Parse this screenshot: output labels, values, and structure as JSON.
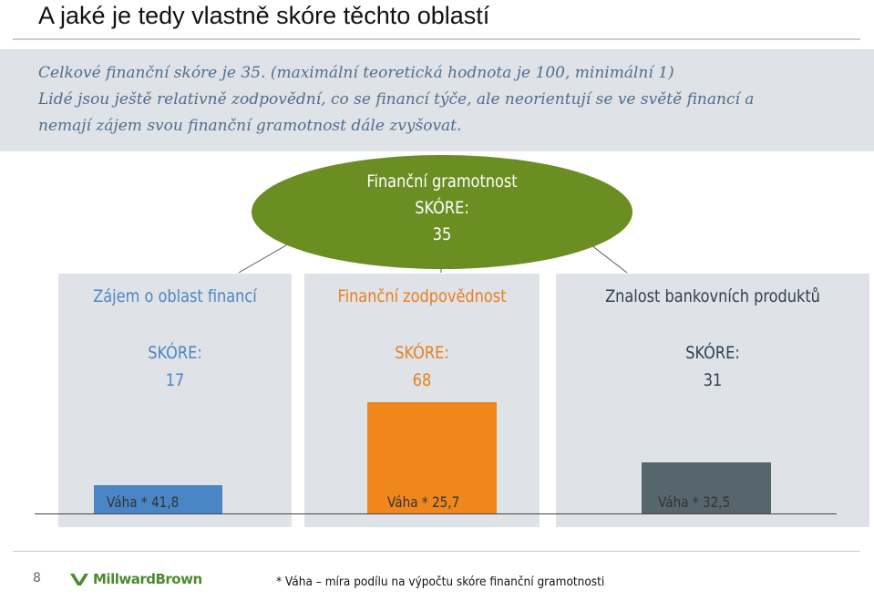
{
  "slide": {
    "title": "A jaké je tedy vlastně skóre těchto oblastí",
    "intro_lines": [
      "Celkové finanční skóre je 35. (maximální teoretická hodnota je 100, minimální 1)",
      "Lidé jsou ještě relativně zodpovědní, co se financí týče, ale neorientují se ve světě financí a",
      "nemají zájem svou finanční gramotnost dále zvyšovat."
    ],
    "overall": {
      "label": "Finanční gramotnost",
      "score_label": "SKÓRE:",
      "score": "35",
      "color": "#6b8e23"
    },
    "areas": [
      {
        "title": "Zájem o oblast financí",
        "score_label": "SKÓRE:",
        "score": "17",
        "weight": "Váha * 41,8",
        "score_value": 17,
        "color": "#4a86c5",
        "bar_color": "#4a86c5"
      },
      {
        "title": "Finanční zodpovědnost",
        "score_label": "SKÓRE:",
        "score": "68",
        "weight": "Váha * 25,7",
        "score_value": 68,
        "color": "#e8801e",
        "bar_color": "#f0871d"
      },
      {
        "title": "Znalost bankovních produktů",
        "score_label": "SKÓRE:",
        "score": "31",
        "weight": "Váha * 32,5",
        "score_value": 31,
        "color": "#2e4150",
        "bar_color": "#56666c"
      }
    ],
    "page_number": "8",
    "logo_text": "MillwardBrown",
    "footnote": "* Váha – míra podílu na výpočtu skóre finanční gramotnosti"
  }
}
